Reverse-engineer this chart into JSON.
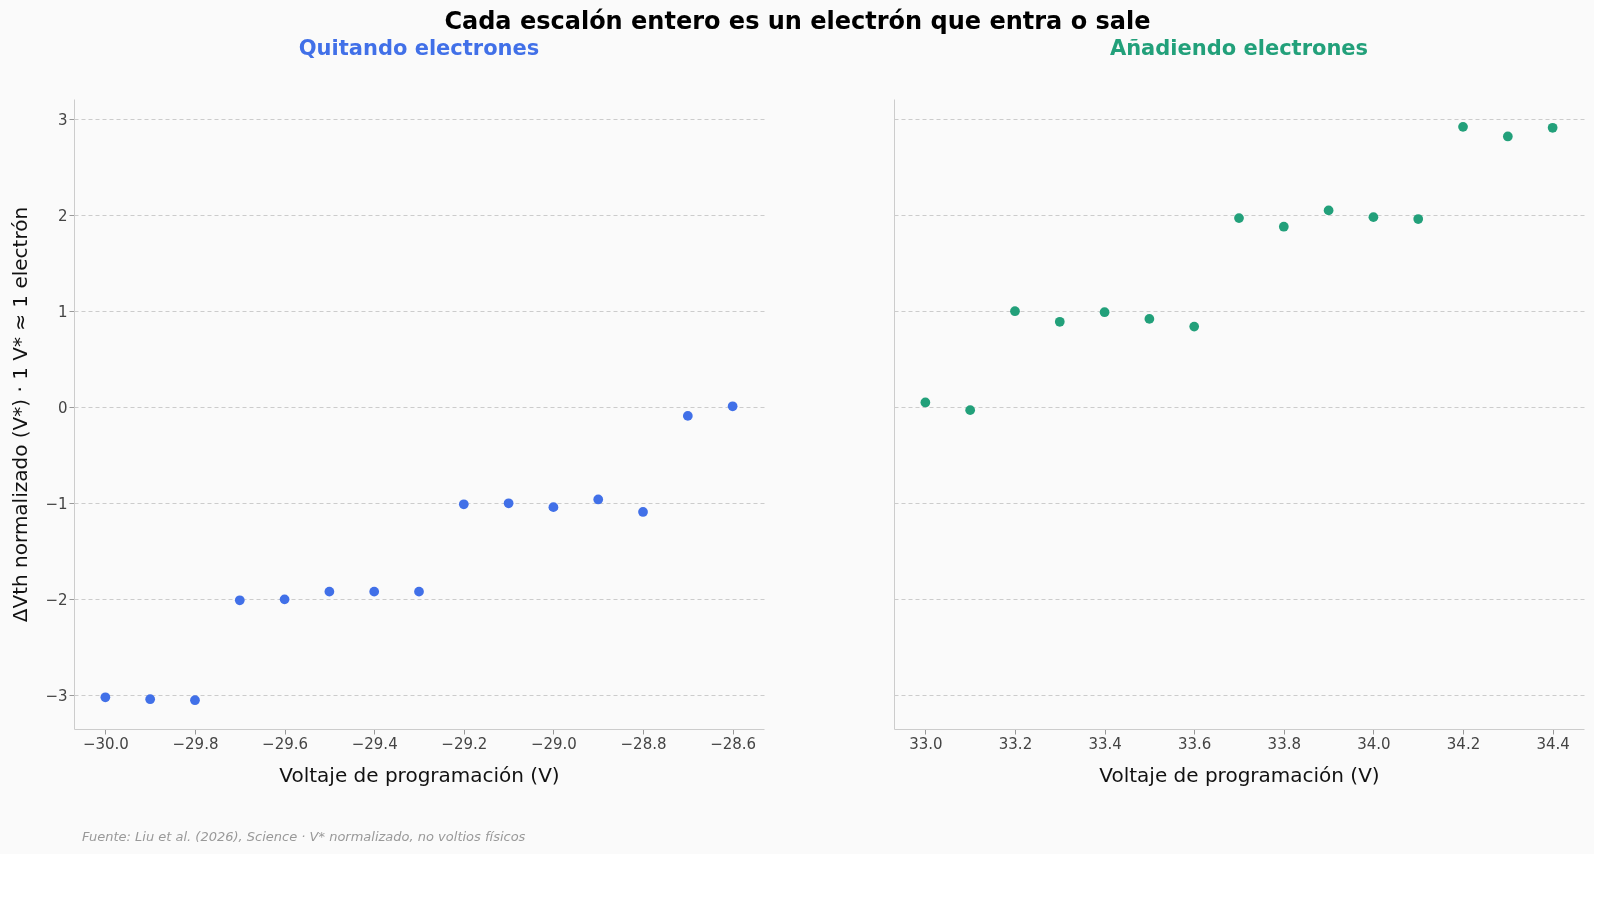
{
  "chart_data": [
    {
      "type": "scatter",
      "title": "Cada escalón entero es un electrón que entra o sale",
      "subtitle": "Quitando electrones",
      "xlabel": "Voltaje de programación (V)",
      "ylabel": "ΔVth normalizado (V*)  ·  1 V* ≈ 1 electrón",
      "x": [
        -30.0,
        -29.9,
        -29.8,
        -29.7,
        -29.6,
        -29.5,
        -29.4,
        -29.3,
        -29.2,
        -29.1,
        -29.0,
        -28.9,
        -28.8,
        -28.7,
        -28.6
      ],
      "series": [
        {
          "color": "#4170e8",
          "values": [
            -3.02,
            -3.04,
            -3.05,
            -2.01,
            -2.0,
            -1.92,
            -1.92,
            -1.92,
            -1.01,
            -1.0,
            -1.04,
            -0.96,
            -1.09,
            -0.09,
            0.01
          ]
        }
      ],
      "xlim": [
        -30.07,
        -28.53
      ],
      "xticks": [
        {
          "value": -30.0,
          "label": "−30.0"
        },
        {
          "value": -29.8,
          "label": "−29.8"
        },
        {
          "value": -29.6,
          "label": "−29.6"
        },
        {
          "value": -29.4,
          "label": "−29.4"
        },
        {
          "value": -29.2,
          "label": "−29.2"
        },
        {
          "value": -29.0,
          "label": "−29.0"
        },
        {
          "value": -28.8,
          "label": "−28.8"
        },
        {
          "value": -28.6,
          "label": "−28.6"
        }
      ],
      "ylim": [
        -3.35,
        3.21
      ],
      "yticks": [
        -3,
        -2,
        -1,
        0,
        1,
        2,
        3
      ],
      "grid": "y",
      "marker": "circle",
      "annotations": [
        "Fuente: Liu et al. (2026), Science  ·  V* normalizado, no voltios físicos"
      ]
    },
    {
      "type": "scatter",
      "subtitle": "Añadiendo electrones",
      "xlabel": "Voltaje de programación (V)",
      "x": [
        33.0,
        33.1,
        33.2,
        33.3,
        33.4,
        33.5,
        33.6,
        33.7,
        33.8,
        33.9,
        34.0,
        34.1,
        34.2,
        34.3,
        34.4
      ],
      "series": [
        {
          "color": "#22a07a",
          "values": [
            0.05,
            -0.03,
            1.0,
            0.89,
            0.99,
            0.92,
            0.84,
            1.97,
            1.88,
            2.05,
            1.98,
            1.96,
            2.92,
            2.82,
            2.91
          ]
        }
      ],
      "xlim": [
        32.93,
        34.47
      ],
      "xticks": [
        {
          "value": 33.0,
          "label": "33.0"
        },
        33.2,
        33.4,
        33.6,
        33.8,
        {
          "value": 34.0,
          "label": "34.0"
        },
        34.2,
        34.4
      ],
      "ylim": [
        -3.35,
        3.21
      ],
      "yticks": [
        -3,
        -2,
        -1,
        0,
        1,
        2,
        3
      ],
      "grid": "y",
      "marker": "circle",
      "tick_labels": "x"
    }
  ]
}
